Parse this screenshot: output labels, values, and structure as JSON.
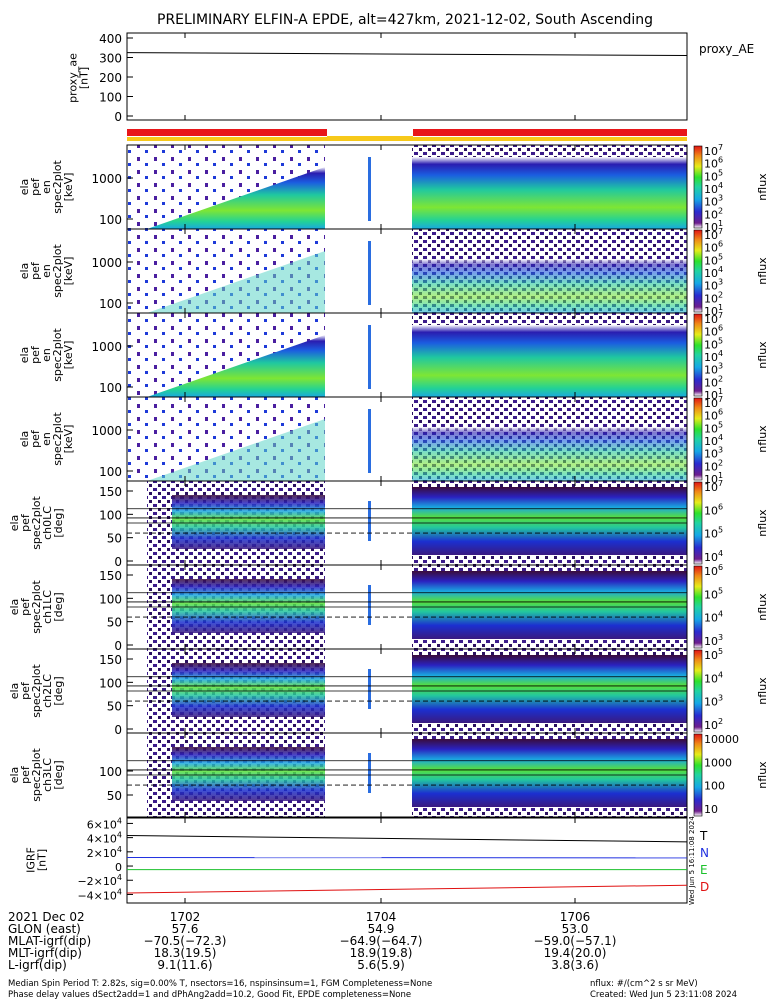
{
  "title": "PRELIMINARY ELFIN-A EPDE, alt=427km, 2021-12-02, South Ascending",
  "colors": {
    "bar_science": "#e8161a",
    "bar_gap": "#f7c91a",
    "grf_T": "#000000",
    "grf_N": "#1f2fe0",
    "grf_E": "#1bc12b",
    "grf_D": "#e01010"
  },
  "proxy_panel": {
    "ylabel": "proxy_ae\n[nT]",
    "legend": "proxy_AE",
    "yticks": [
      "400",
      "300",
      "200",
      "100",
      "0"
    ]
  },
  "energy_panels": [
    {
      "ylabel": "ela\npef\nen\nspec2plot\n[keV]",
      "yticks": [
        "1000",
        "100"
      ],
      "cbar_label": "nflux",
      "cbar_ticks": [
        "10^7",
        "10^6",
        "10^5",
        "10^4",
        "10^3",
        "10^2",
        "10^1"
      ]
    },
    {
      "ylabel": "ela\npef\nen\nspec2plot\n[keV]",
      "yticks": [
        "1000",
        "100"
      ],
      "cbar_label": "nflux",
      "cbar_ticks": [
        "10^7",
        "10^6",
        "10^5",
        "10^4",
        "10^3",
        "10^2",
        "10^1"
      ]
    },
    {
      "ylabel": "ela\npef\nen\nspec2plot\n[keV]",
      "yticks": [
        "1000",
        "100"
      ],
      "cbar_label": "nflux",
      "cbar_ticks": [
        "10^7",
        "10^6",
        "10^5",
        "10^4",
        "10^3",
        "10^2",
        "10^1"
      ]
    },
    {
      "ylabel": "ela\npef\nen\nspec2plot\n[keV]",
      "yticks": [
        "1000",
        "100"
      ],
      "cbar_label": "nflux",
      "cbar_ticks": [
        "10^7",
        "10^6",
        "10^5",
        "10^4",
        "10^3",
        "10^2",
        "10^1"
      ]
    }
  ],
  "pitch_panels": [
    {
      "ylabel": "ela\npef\nspec2plot\nch0LC\n[deg]",
      "yticks": [
        "150",
        "100",
        "50",
        "0"
      ],
      "cbar_label": "nflux",
      "cbar_ticks": [
        "10^7",
        "10^6",
        "10^5",
        "10^4"
      ]
    },
    {
      "ylabel": "ela\npef\nspec2plot\nch1LC\n[deg]",
      "yticks": [
        "150",
        "100",
        "50",
        "0"
      ],
      "cbar_label": "nflux",
      "cbar_ticks": [
        "10^6",
        "10^5",
        "10^4",
        "10^3"
      ]
    },
    {
      "ylabel": "ela\npef\nspec2plot\nch2LC\n[deg]",
      "yticks": [
        "150",
        "100",
        "50",
        "0"
      ],
      "cbar_label": "nflux",
      "cbar_ticks": [
        "10^5",
        "10^4",
        "10^3",
        "10^2"
      ]
    },
    {
      "ylabel": "ela\npef\nspec2plot\nch3LC\n[deg]",
      "yticks": [
        "100",
        "50"
      ],
      "cbar_label": "nflux",
      "cbar_ticks": [
        "10000",
        "1000",
        "100",
        "10"
      ]
    }
  ],
  "grf_panel": {
    "ylabel": "IGRF\n[nT]",
    "yticks": [
      "6×10^4",
      "4×10^4",
      "2×10^4",
      "0",
      "−2×10^4",
      "−4×10^4"
    ],
    "legend": [
      "T",
      "N",
      "E",
      "D"
    ]
  },
  "side_stamp": "Wed Jun  5 16:11:08 2024",
  "footer": {
    "rows": [
      {
        "label": "2021 Dec 02",
        "values": [
          "1702",
          "1704",
          "1706"
        ]
      },
      {
        "label": "GLON (east)",
        "values": [
          "57.6",
          "54.9",
          "53.0"
        ]
      },
      {
        "label": "MLAT-igrf(dip)",
        "values": [
          "−70.5(−72.3)",
          "−64.9(−64.7)",
          "−59.0(−57.1)"
        ]
      },
      {
        "label": "MLT-igrf(dip)",
        "values": [
          "18.3(19.5)",
          "18.9(19.8)",
          "19.4(20.0)"
        ]
      },
      {
        "label": "L-igrf(dip)",
        "values": [
          "9.1(11.6)",
          "5.6(5.9)",
          "3.8(3.6)"
        ]
      }
    ],
    "note1": "Median Spin Period T: 2.82s, sig=0.00% T, nsectors=16, nspinsinsum=1, FGM Completeness=None",
    "note2": "Phase delay values dSect2add=1 and dPhAng2add=10.2, Good Fit, EPDE completeness=None",
    "units": "nflux: #/(cm^2 s sr MeV)",
    "created": "Created: Wed Jun  5 23:11:08 2024"
  },
  "chart_data": [
    {
      "type": "line",
      "title": "PRELIMINARY ELFIN-A EPDE, alt=427km, 2021-12-02, South Ascending",
      "ylabel": "proxy_ae [nT]",
      "ylim": [
        0,
        400
      ],
      "x_ticks": [
        "1702",
        "1704",
        "1706"
      ],
      "series": [
        {
          "name": "proxy_AE",
          "x": [
            "1701",
            "1707"
          ],
          "values": [
            325,
            310
          ]
        }
      ]
    },
    {
      "type": "heatmap",
      "ylabel": "ela pef en spec2plot [keV]",
      "y_scale": "log",
      "ylim": [
        50,
        7000
      ],
      "colorbar": {
        "label": "nflux",
        "scale": "log",
        "range": [
          "10^1",
          "10^7"
        ]
      },
      "gaps": [
        "1703.2-1703.4",
        "1703.6-1704.3"
      ],
      "panels": 4
    },
    {
      "type": "heatmap",
      "ylabel": "ela pef spec2plot chLC [deg]",
      "ylim": [
        0,
        180
      ],
      "channels": [
        "ch0LC",
        "ch1LC",
        "ch2LC",
        "ch3LC"
      ],
      "colorbar_ranges": [
        [
          "10^4",
          "10^7"
        ],
        [
          "10^3",
          "10^6"
        ],
        [
          "10^2",
          "10^5"
        ],
        [
          "10",
          "10000"
        ]
      ]
    },
    {
      "type": "line",
      "ylabel": "IGRF [nT]",
      "ylim": [
        -45000,
        60000
      ],
      "series": [
        {
          "name": "T",
          "values": [
            43000,
            34000
          ]
        },
        {
          "name": "N",
          "values": [
            12000,
            11500
          ]
        },
        {
          "name": "E",
          "values": [
            -5000,
            -5000
          ]
        },
        {
          "name": "D",
          "values": [
            -38000,
            -27000
          ]
        }
      ]
    }
  ]
}
